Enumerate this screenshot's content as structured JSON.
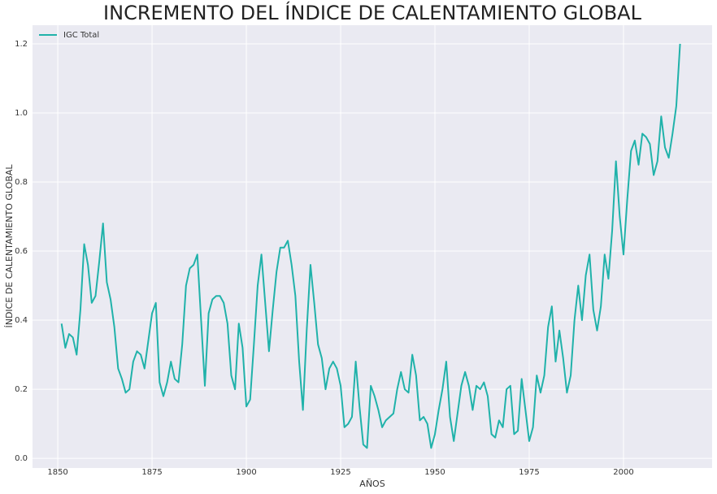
{
  "chart_data": {
    "type": "line",
    "title": "INCREMENTO DEL ÍNDICE DE CALENTAMIENTO GLOBAL",
    "xlabel": "AÑOS",
    "ylabel": "ÍNDICE DE CALENTAMIENTO GLOBAL",
    "x": [
      1851,
      1852,
      1853,
      1854,
      1855,
      1856,
      1857,
      1858,
      1859,
      1860,
      1861,
      1862,
      1863,
      1864,
      1865,
      1866,
      1867,
      1868,
      1869,
      1870,
      1871,
      1872,
      1873,
      1874,
      1875,
      1876,
      1877,
      1878,
      1879,
      1880,
      1881,
      1882,
      1883,
      1884,
      1885,
      1886,
      1887,
      1888,
      1889,
      1890,
      1891,
      1892,
      1893,
      1894,
      1895,
      1896,
      1897,
      1898,
      1899,
      1900,
      1901,
      1902,
      1903,
      1904,
      1905,
      1906,
      1907,
      1908,
      1909,
      1910,
      1911,
      1912,
      1913,
      1914,
      1915,
      1916,
      1917,
      1918,
      1919,
      1920,
      1921,
      1922,
      1923,
      1924,
      1925,
      1926,
      1927,
      1928,
      1929,
      1930,
      1931,
      1932,
      1933,
      1934,
      1935,
      1936,
      1937,
      1938,
      1939,
      1940,
      1941,
      1942,
      1943,
      1944,
      1945,
      1946,
      1947,
      1948,
      1949,
      1950,
      1951,
      1952,
      1953,
      1954,
      1955,
      1956,
      1957,
      1958,
      1959,
      1960,
      1961,
      1962,
      1963,
      1964,
      1965,
      1966,
      1967,
      1968,
      1969,
      1970,
      1971,
      1972,
      1973,
      1974,
      1975,
      1976,
      1977,
      1978,
      1979,
      1980,
      1981,
      1982,
      1983,
      1984,
      1985,
      1986,
      1987,
      1988,
      1989,
      1990,
      1991,
      1992,
      1993,
      1994,
      1995,
      1996,
      1997,
      1998,
      1999,
      2000,
      2001,
      2002,
      2003,
      2004,
      2005,
      2006,
      2007,
      2008,
      2009,
      2010,
      2011,
      2012,
      2013,
      2014,
      2015
    ],
    "series": [
      {
        "name": "IGC Total",
        "color": "#20b2aa",
        "values": [
          0.39,
          0.32,
          0.36,
          0.35,
          0.3,
          0.43,
          0.62,
          0.56,
          0.45,
          0.47,
          0.57,
          0.68,
          0.51,
          0.46,
          0.38,
          0.26,
          0.23,
          0.19,
          0.2,
          0.28,
          0.31,
          0.3,
          0.26,
          0.34,
          0.42,
          0.45,
          0.22,
          0.18,
          0.22,
          0.28,
          0.23,
          0.22,
          0.33,
          0.5,
          0.55,
          0.56,
          0.59,
          0.4,
          0.21,
          0.42,
          0.46,
          0.47,
          0.47,
          0.45,
          0.39,
          0.24,
          0.2,
          0.39,
          0.32,
          0.15,
          0.17,
          0.33,
          0.5,
          0.59,
          0.45,
          0.31,
          0.43,
          0.54,
          0.61,
          0.61,
          0.63,
          0.56,
          0.47,
          0.28,
          0.14,
          0.37,
          0.56,
          0.45,
          0.33,
          0.29,
          0.2,
          0.26,
          0.28,
          0.26,
          0.21,
          0.09,
          0.1,
          0.12,
          0.28,
          0.15,
          0.04,
          0.03,
          0.21,
          0.18,
          0.14,
          0.09,
          0.11,
          0.12,
          0.13,
          0.2,
          0.25,
          0.2,
          0.19,
          0.3,
          0.24,
          0.11,
          0.12,
          0.1,
          0.03,
          0.07,
          0.14,
          0.2,
          0.28,
          0.12,
          0.05,
          0.13,
          0.21,
          0.25,
          0.21,
          0.14,
          0.21,
          0.2,
          0.22,
          0.18,
          0.07,
          0.06,
          0.11,
          0.09,
          0.2,
          0.21,
          0.07,
          0.08,
          0.23,
          0.14,
          0.05,
          0.09,
          0.24,
          0.19,
          0.24,
          0.38,
          0.44,
          0.28,
          0.37,
          0.29,
          0.19,
          0.24,
          0.4,
          0.5,
          0.4,
          0.53,
          0.59,
          0.43,
          0.37,
          0.44,
          0.59,
          0.52,
          0.66,
          0.86,
          0.7,
          0.59,
          0.75,
          0.89,
          0.92,
          0.85,
          0.94,
          0.93,
          0.91,
          0.82,
          0.86,
          0.99,
          0.9,
          0.87,
          0.94,
          1.02,
          1.2
        ]
      }
    ],
    "xlim": [
      1843.3,
      2023.5
    ],
    "ylim": [
      -0.028,
      1.254
    ],
    "xticks": [
      1850,
      1875,
      1900,
      1925,
      1950,
      1975,
      2000
    ],
    "yticks": [
      {
        "value": 0,
        "label": "0.0"
      },
      0.2,
      0.4,
      0.6,
      0.8,
      {
        "value": 1,
        "label": "1.0"
      },
      1.2
    ],
    "grid": true,
    "legend": "upper left"
  }
}
